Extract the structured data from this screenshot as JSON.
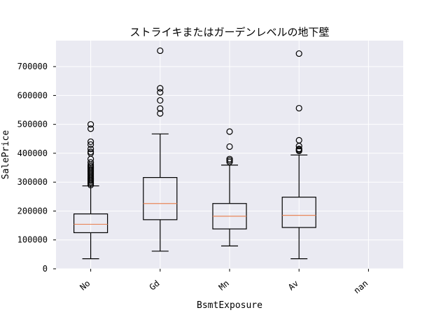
{
  "chart_data": {
    "type": "box",
    "title": "ストライキまたはガーデンレベルの地下壁",
    "xlabel": "BsmtExposure",
    "ylabel": "SalePrice",
    "categories": [
      "No",
      "Gd",
      "Mn",
      "Av",
      "nan"
    ],
    "ylim": [
      0,
      790000
    ],
    "yticks": [
      0,
      100000,
      200000,
      300000,
      400000,
      500000,
      600000,
      700000
    ],
    "ytick_labels": [
      "0",
      "100000",
      "200000",
      "300000",
      "400000",
      "500000",
      "600000",
      "700000"
    ],
    "grid": true,
    "background": "#eaeaf2",
    "box_color": "#000000",
    "median_color": "#e8875a",
    "boxes": [
      {
        "category": "No",
        "whisker_low": 34900,
        "q1": 125000,
        "median": 154000,
        "q3": 190000,
        "whisker_high": 287000,
        "outliers": [
          290000,
          295000,
          300000,
          305000,
          310000,
          315000,
          320000,
          325000,
          330000,
          335000,
          340000,
          345000,
          350000,
          355000,
          360000,
          368000,
          380000,
          400000,
          405000,
          415000,
          430000,
          440000,
          485000,
          500000
        ]
      },
      {
        "category": "Gd",
        "whisker_low": 61000,
        "q1": 170000,
        "median": 226000,
        "q3": 316000,
        "whisker_high": 467000,
        "outliers": [
          538000,
          555000,
          583000,
          611000,
          625000,
          755000
        ]
      },
      {
        "category": "Mn",
        "whisker_low": 79000,
        "q1": 138000,
        "median": 182000,
        "q3": 226000,
        "whisker_high": 359000,
        "outliers": [
          370000,
          375000,
          380000,
          423000,
          475000
        ]
      },
      {
        "category": "Av",
        "whisker_low": 34900,
        "q1": 143000,
        "median": 185000,
        "q3": 248000,
        "whisker_high": 394000,
        "outliers": [
          408000,
          412000,
          415000,
          425000,
          445000,
          556000,
          745000
        ]
      },
      {
        "category": "nan"
      }
    ]
  }
}
